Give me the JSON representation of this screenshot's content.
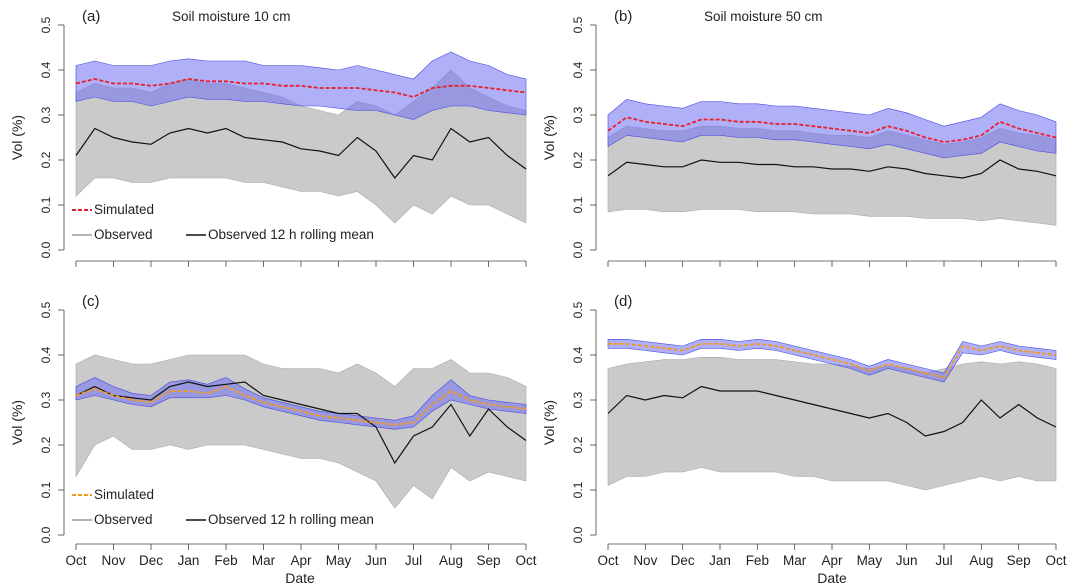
{
  "figure": {
    "x_axis_label": "Date",
    "y_axis_label": "Vol (%)",
    "month_ticks": [
      "Oct",
      "Nov",
      "Dec",
      "Jan",
      "Feb",
      "Mar",
      "Apr",
      "May",
      "Jun",
      "Jul",
      "Aug",
      "Sep",
      "Oct"
    ],
    "y_ticks": [
      "0.0",
      "0.1",
      "0.2",
      "0.3",
      "0.4",
      "0.5"
    ]
  },
  "chart_data": [
    {
      "type": "line",
      "panel": "(a)",
      "title": "Soil moisture 10 cm",
      "xlabel": "",
      "ylabel": "Vol (%)",
      "ylim": [
        0,
        0.5
      ],
      "x_ticks": [
        "Oct",
        "Nov",
        "Dec",
        "Jan",
        "Feb",
        "Mar",
        "Apr",
        "May",
        "Jun",
        "Jul",
        "Aug",
        "Sep",
        "Oct"
      ],
      "band_colors": {
        "observed": "#b8b8b8",
        "simulated": "#6f6ff2"
      },
      "legend": [
        {
          "label": "Simulated",
          "style": "dashed",
          "color": "#e8202a"
        },
        {
          "label": "Observed",
          "style": "solid",
          "color": "#9a9a9a"
        },
        {
          "label": "Observed 12 h rolling mean",
          "style": "solid",
          "color": "#111111"
        }
      ],
      "x": [
        0,
        0.5,
        1,
        1.5,
        2,
        2.5,
        3,
        3.5,
        4,
        4.5,
        5,
        5.5,
        6,
        6.5,
        7,
        7.5,
        8,
        8.5,
        9,
        9.5,
        10,
        10.5,
        11,
        11.5,
        12
      ],
      "series": [
        {
          "name": "Simulated",
          "values": [
            0.37,
            0.38,
            0.37,
            0.37,
            0.365,
            0.37,
            0.38,
            0.375,
            0.375,
            0.37,
            0.37,
            0.365,
            0.365,
            0.36,
            0.36,
            0.36,
            0.355,
            0.35,
            0.34,
            0.36,
            0.365,
            0.365,
            0.36,
            0.355,
            0.35
          ],
          "band_low": [
            0.33,
            0.34,
            0.33,
            0.33,
            0.32,
            0.33,
            0.34,
            0.335,
            0.335,
            0.33,
            0.33,
            0.325,
            0.32,
            0.32,
            0.315,
            0.31,
            0.31,
            0.3,
            0.29,
            0.31,
            0.32,
            0.32,
            0.31,
            0.305,
            0.3
          ],
          "band_high": [
            0.41,
            0.42,
            0.41,
            0.41,
            0.41,
            0.42,
            0.425,
            0.42,
            0.42,
            0.42,
            0.41,
            0.41,
            0.41,
            0.405,
            0.4,
            0.41,
            0.4,
            0.39,
            0.38,
            0.42,
            0.44,
            0.42,
            0.41,
            0.39,
            0.38
          ]
        },
        {
          "name": "Observed 12 h rolling mean",
          "values": [
            0.21,
            0.27,
            0.25,
            0.24,
            0.235,
            0.26,
            0.27,
            0.26,
            0.27,
            0.25,
            0.245,
            0.24,
            0.225,
            0.22,
            0.21,
            0.25,
            0.22,
            0.16,
            0.21,
            0.2,
            0.27,
            0.24,
            0.25,
            0.21,
            0.18
          ],
          "band_low": [
            0.12,
            0.16,
            0.16,
            0.15,
            0.15,
            0.16,
            0.16,
            0.16,
            0.16,
            0.15,
            0.15,
            0.14,
            0.13,
            0.13,
            0.12,
            0.13,
            0.1,
            0.06,
            0.1,
            0.08,
            0.12,
            0.1,
            0.1,
            0.08,
            0.06
          ],
          "band_high": [
            0.35,
            0.37,
            0.36,
            0.36,
            0.35,
            0.37,
            0.38,
            0.37,
            0.37,
            0.36,
            0.35,
            0.34,
            0.32,
            0.31,
            0.3,
            0.33,
            0.32,
            0.3,
            0.33,
            0.36,
            0.4,
            0.36,
            0.34,
            0.32,
            0.31
          ]
        }
      ]
    },
    {
      "type": "line",
      "panel": "(b)",
      "title": "Soil moisture 50 cm",
      "xlabel": "",
      "ylabel": "Vol (%)",
      "ylim": [
        0,
        0.5
      ],
      "x_ticks": [
        "Oct",
        "Nov",
        "Dec",
        "Jan",
        "Feb",
        "Mar",
        "Apr",
        "May",
        "Jun",
        "Jul",
        "Aug",
        "Sep",
        "Oct"
      ],
      "band_colors": {
        "observed": "#b8b8b8",
        "simulated": "#6f6ff2"
      },
      "legend": [],
      "x": [
        0,
        0.5,
        1,
        1.5,
        2,
        2.5,
        3,
        3.5,
        4,
        4.5,
        5,
        5.5,
        6,
        6.5,
        7,
        7.5,
        8,
        8.5,
        9,
        9.5,
        10,
        10.5,
        11,
        11.5,
        12
      ],
      "series": [
        {
          "name": "Simulated",
          "values": [
            0.265,
            0.295,
            0.285,
            0.28,
            0.275,
            0.29,
            0.29,
            0.285,
            0.285,
            0.28,
            0.28,
            0.275,
            0.27,
            0.265,
            0.26,
            0.275,
            0.265,
            0.25,
            0.24,
            0.245,
            0.255,
            0.285,
            0.27,
            0.26,
            0.25
          ],
          "band_low": [
            0.23,
            0.255,
            0.25,
            0.245,
            0.24,
            0.255,
            0.255,
            0.25,
            0.25,
            0.245,
            0.245,
            0.24,
            0.235,
            0.23,
            0.225,
            0.235,
            0.225,
            0.215,
            0.205,
            0.21,
            0.215,
            0.24,
            0.23,
            0.22,
            0.215
          ],
          "band_high": [
            0.3,
            0.335,
            0.325,
            0.32,
            0.315,
            0.33,
            0.33,
            0.325,
            0.325,
            0.32,
            0.32,
            0.315,
            0.31,
            0.305,
            0.3,
            0.315,
            0.305,
            0.29,
            0.275,
            0.285,
            0.295,
            0.325,
            0.31,
            0.3,
            0.285
          ]
        },
        {
          "name": "Observed 12 h rolling mean",
          "values": [
            0.165,
            0.195,
            0.19,
            0.185,
            0.185,
            0.2,
            0.195,
            0.195,
            0.19,
            0.19,
            0.185,
            0.185,
            0.18,
            0.18,
            0.175,
            0.185,
            0.18,
            0.17,
            0.165,
            0.16,
            0.17,
            0.2,
            0.18,
            0.175,
            0.165
          ],
          "band_low": [
            0.085,
            0.09,
            0.09,
            0.085,
            0.085,
            0.09,
            0.09,
            0.09,
            0.085,
            0.085,
            0.085,
            0.08,
            0.08,
            0.08,
            0.075,
            0.075,
            0.075,
            0.07,
            0.07,
            0.07,
            0.065,
            0.07,
            0.065,
            0.06,
            0.055
          ],
          "band_high": [
            0.25,
            0.275,
            0.27,
            0.265,
            0.265,
            0.275,
            0.275,
            0.27,
            0.27,
            0.265,
            0.265,
            0.26,
            0.255,
            0.255,
            0.25,
            0.265,
            0.255,
            0.245,
            0.235,
            0.24,
            0.25,
            0.27,
            0.26,
            0.255,
            0.245
          ]
        }
      ]
    },
    {
      "type": "line",
      "panel": "(c)",
      "title": "",
      "xlabel": "Date",
      "ylabel": "Vol (%)",
      "ylim": [
        0,
        0.5
      ],
      "x_ticks": [
        "Oct",
        "Nov",
        "Dec",
        "Jan",
        "Feb",
        "Mar",
        "Apr",
        "May",
        "Jun",
        "Jul",
        "Aug",
        "Sep",
        "Oct"
      ],
      "band_colors": {
        "observed": "#b8b8b8",
        "simulated": "#6f6ff2"
      },
      "legend": [
        {
          "label": "Simulated",
          "style": "dashed",
          "color": "#f39a1e"
        },
        {
          "label": "Observed",
          "style": "solid",
          "color": "#9a9a9a"
        },
        {
          "label": "Observed 12 h rolling mean",
          "style": "solid",
          "color": "#111111"
        }
      ],
      "x": [
        0,
        0.5,
        1,
        1.5,
        2,
        2.5,
        3,
        3.5,
        4,
        4.5,
        5,
        5.5,
        6,
        6.5,
        7,
        7.5,
        8,
        8.5,
        9,
        9.5,
        10,
        10.5,
        11,
        11.5,
        12
      ],
      "series": [
        {
          "name": "Simulated",
          "values": [
            0.31,
            0.325,
            0.31,
            0.3,
            0.295,
            0.32,
            0.32,
            0.315,
            0.33,
            0.31,
            0.295,
            0.285,
            0.275,
            0.265,
            0.26,
            0.255,
            0.25,
            0.245,
            0.25,
            0.29,
            0.32,
            0.3,
            0.29,
            0.285,
            0.28
          ],
          "band_low": [
            0.3,
            0.31,
            0.3,
            0.29,
            0.285,
            0.305,
            0.305,
            0.305,
            0.31,
            0.3,
            0.285,
            0.275,
            0.265,
            0.255,
            0.25,
            0.245,
            0.24,
            0.235,
            0.24,
            0.275,
            0.3,
            0.29,
            0.28,
            0.275,
            0.27
          ],
          "band_high": [
            0.33,
            0.35,
            0.33,
            0.315,
            0.31,
            0.34,
            0.345,
            0.335,
            0.35,
            0.325,
            0.305,
            0.295,
            0.285,
            0.275,
            0.27,
            0.265,
            0.26,
            0.255,
            0.265,
            0.31,
            0.345,
            0.31,
            0.3,
            0.295,
            0.29
          ]
        },
        {
          "name": "Observed 12 h rolling mean",
          "values": [
            0.31,
            0.33,
            0.31,
            0.305,
            0.3,
            0.33,
            0.34,
            0.33,
            0.335,
            0.34,
            0.31,
            0.3,
            0.29,
            0.28,
            0.27,
            0.27,
            0.24,
            0.16,
            0.22,
            0.24,
            0.29,
            0.22,
            0.28,
            0.24,
            0.21
          ],
          "band_low": [
            0.13,
            0.2,
            0.22,
            0.19,
            0.19,
            0.2,
            0.19,
            0.2,
            0.2,
            0.2,
            0.19,
            0.18,
            0.17,
            0.17,
            0.16,
            0.14,
            0.12,
            0.06,
            0.11,
            0.08,
            0.15,
            0.12,
            0.14,
            0.13,
            0.12
          ],
          "band_high": [
            0.38,
            0.4,
            0.39,
            0.38,
            0.38,
            0.39,
            0.4,
            0.4,
            0.4,
            0.4,
            0.38,
            0.37,
            0.37,
            0.37,
            0.36,
            0.38,
            0.36,
            0.33,
            0.37,
            0.37,
            0.39,
            0.36,
            0.36,
            0.35,
            0.33
          ]
        }
      ]
    },
    {
      "type": "line",
      "panel": "(d)",
      "title": "",
      "xlabel": "Date",
      "ylabel": "Vol (%)",
      "ylim": [
        0,
        0.5
      ],
      "x_ticks": [
        "Oct",
        "Nov",
        "Dec",
        "Jan",
        "Feb",
        "Mar",
        "Apr",
        "May",
        "Jun",
        "Jul",
        "Aug",
        "Sep",
        "Oct"
      ],
      "band_colors": {
        "observed": "#b8b8b8",
        "simulated": "#6f6ff2"
      },
      "legend": [],
      "x": [
        0,
        0.5,
        1,
        1.5,
        2,
        2.5,
        3,
        3.5,
        4,
        4.5,
        5,
        5.5,
        6,
        6.5,
        7,
        7.5,
        8,
        8.5,
        9,
        9.5,
        10,
        10.5,
        11,
        11.5,
        12
      ],
      "series": [
        {
          "name": "Simulated",
          "values": [
            0.425,
            0.425,
            0.42,
            0.415,
            0.41,
            0.425,
            0.425,
            0.42,
            0.425,
            0.42,
            0.41,
            0.4,
            0.39,
            0.38,
            0.365,
            0.38,
            0.37,
            0.36,
            0.35,
            0.42,
            0.41,
            0.42,
            0.41,
            0.405,
            0.4
          ],
          "band_low": [
            0.415,
            0.415,
            0.41,
            0.405,
            0.4,
            0.415,
            0.415,
            0.41,
            0.415,
            0.41,
            0.4,
            0.39,
            0.38,
            0.37,
            0.355,
            0.37,
            0.36,
            0.35,
            0.34,
            0.405,
            0.4,
            0.41,
            0.4,
            0.395,
            0.39
          ],
          "band_high": [
            0.435,
            0.435,
            0.43,
            0.425,
            0.42,
            0.435,
            0.435,
            0.43,
            0.435,
            0.43,
            0.42,
            0.41,
            0.4,
            0.39,
            0.375,
            0.39,
            0.38,
            0.37,
            0.36,
            0.43,
            0.42,
            0.43,
            0.42,
            0.415,
            0.41
          ]
        },
        {
          "name": "Observed 12 h rolling mean",
          "values": [
            0.27,
            0.31,
            0.3,
            0.31,
            0.305,
            0.33,
            0.32,
            0.32,
            0.32,
            0.31,
            0.3,
            0.29,
            0.28,
            0.27,
            0.26,
            0.27,
            0.25,
            0.22,
            0.23,
            0.25,
            0.3,
            0.26,
            0.29,
            0.26,
            0.24
          ],
          "band_low": [
            0.11,
            0.13,
            0.13,
            0.14,
            0.14,
            0.15,
            0.14,
            0.14,
            0.14,
            0.14,
            0.13,
            0.13,
            0.12,
            0.12,
            0.12,
            0.12,
            0.11,
            0.1,
            0.11,
            0.12,
            0.13,
            0.12,
            0.13,
            0.12,
            0.12
          ],
          "band_high": [
            0.37,
            0.38,
            0.385,
            0.39,
            0.39,
            0.395,
            0.395,
            0.39,
            0.39,
            0.39,
            0.385,
            0.38,
            0.38,
            0.375,
            0.37,
            0.375,
            0.37,
            0.36,
            0.37,
            0.38,
            0.385,
            0.38,
            0.385,
            0.38,
            0.37
          ]
        }
      ]
    }
  ]
}
